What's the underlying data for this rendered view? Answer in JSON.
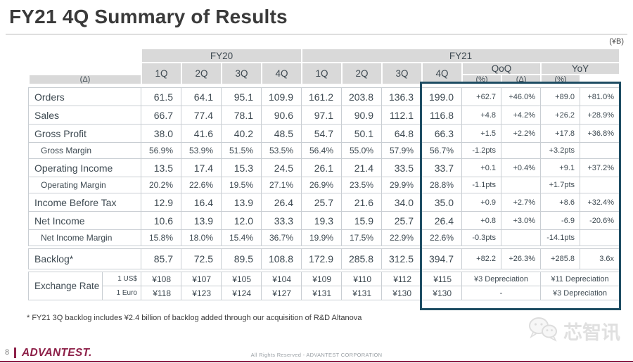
{
  "title": "FY21 4Q Summary of Results",
  "unit_label": "(¥B)",
  "table": {
    "fy20_label": "FY20",
    "fy21_label": "FY21",
    "qoq_label": "QoQ",
    "yoy_label": "YoY",
    "delta_label": "(Δ)",
    "pct_label": "(%)",
    "quarters": [
      "1Q",
      "2Q",
      "3Q",
      "4Q"
    ],
    "rows": [
      {
        "label": "Orders",
        "type": "main",
        "fy20": [
          "61.5",
          "64.1",
          "95.1",
          "109.9"
        ],
        "fy21": [
          "161.2",
          "203.8",
          "136.3",
          "199.0"
        ],
        "qoq": [
          "+62.7",
          "+46.0%"
        ],
        "yoy": [
          "+89.0",
          "+81.0%"
        ]
      },
      {
        "label": "Sales",
        "type": "main",
        "fy20": [
          "66.7",
          "77.4",
          "78.1",
          "90.6"
        ],
        "fy21": [
          "97.1",
          "90.9",
          "112.1",
          "116.8"
        ],
        "qoq": [
          "+4.8",
          "+4.2%"
        ],
        "yoy": [
          "+26.2",
          "+28.9%"
        ]
      },
      {
        "label": "Gross Profit",
        "type": "main",
        "fy20": [
          "38.0",
          "41.6",
          "40.2",
          "48.5"
        ],
        "fy21": [
          "54.7",
          "50.1",
          "64.8",
          "66.3"
        ],
        "qoq": [
          "+1.5",
          "+2.2%"
        ],
        "yoy": [
          "+17.8",
          "+36.8%"
        ]
      },
      {
        "label": "Gross Margin",
        "type": "sub",
        "fy20": [
          "56.9%",
          "53.9%",
          "51.5%",
          "53.5%"
        ],
        "fy21": [
          "56.4%",
          "55.0%",
          "57.9%",
          "56.7%"
        ],
        "qoq": [
          "-1.2pts",
          ""
        ],
        "yoy": [
          "+3.2pts",
          ""
        ]
      },
      {
        "label": "Operating Income",
        "type": "main",
        "fy20": [
          "13.5",
          "17.4",
          "15.3",
          "24.5"
        ],
        "fy21": [
          "26.1",
          "21.4",
          "33.5",
          "33.7"
        ],
        "qoq": [
          "+0.1",
          "+0.4%"
        ],
        "yoy": [
          "+9.1",
          "+37.2%"
        ]
      },
      {
        "label": "Operating Margin",
        "type": "sub",
        "fy20": [
          "20.2%",
          "22.6%",
          "19.5%",
          "27.1%"
        ],
        "fy21": [
          "26.9%",
          "23.5%",
          "29.9%",
          "28.8%"
        ],
        "qoq": [
          "-1.1pts",
          ""
        ],
        "yoy": [
          "+1.7pts",
          ""
        ]
      },
      {
        "label": "Income Before Tax",
        "type": "main",
        "fy20": [
          "12.9",
          "16.4",
          "13.9",
          "26.4"
        ],
        "fy21": [
          "25.7",
          "21.6",
          "34.0",
          "35.0"
        ],
        "qoq": [
          "+0.9",
          "+2.7%"
        ],
        "yoy": [
          "+8.6",
          "+32.4%"
        ]
      },
      {
        "label": "Net Income",
        "type": "main",
        "fy20": [
          "10.6",
          "13.9",
          "12.0",
          "33.3"
        ],
        "fy21": [
          "19.3",
          "15.9",
          "25.7",
          "26.4"
        ],
        "qoq": [
          "+0.8",
          "+3.0%"
        ],
        "yoy": [
          "-6.9",
          "-20.6%"
        ]
      },
      {
        "label": "Net Income Margin",
        "type": "sub",
        "fy20": [
          "15.8%",
          "18.0%",
          "15.4%",
          "36.7%"
        ],
        "fy21": [
          "19.9%",
          "17.5%",
          "22.9%",
          "22.6%"
        ],
        "qoq": [
          "-0.3pts",
          ""
        ],
        "yoy": [
          "-14.1pts",
          ""
        ]
      }
    ],
    "backlog": {
      "label": "Backlog*",
      "type": "main",
      "fy20": [
        "85.7",
        "72.5",
        "89.5",
        "108.8"
      ],
      "fy21": [
        "172.9",
        "285.8",
        "312.5",
        "394.7"
      ],
      "qoq": [
        "+82.2",
        "+26.3%"
      ],
      "yoy": [
        "+285.8",
        "3.6x"
      ]
    },
    "exchange": {
      "label": "Exchange Rate",
      "rows": [
        {
          "sub_label": "1 US$",
          "values": [
            "¥108",
            "¥107",
            "¥105",
            "¥104",
            "¥109",
            "¥110",
            "¥112",
            "¥115"
          ],
          "qoq": "¥3 Depreciation",
          "yoy": "¥11 Depreciation"
        },
        {
          "sub_label": "1 Euro",
          "values": [
            "¥118",
            "¥123",
            "¥124",
            "¥127",
            "¥131",
            "¥131",
            "¥130",
            "¥130"
          ],
          "qoq": "-",
          "yoy": "¥3 Depreciation"
        }
      ]
    }
  },
  "footnote": "* FY21 3Q backlog includes ¥2.4 billion of backlog added through our acquisition of R&D Altanova",
  "watermark": {
    "text": "芯智讯",
    "icon": "wechat-bubbles-icon"
  },
  "footer": {
    "page_number": "8",
    "logo_text": "ADVANTEST.",
    "copyright": "All Rights Reserved - ADVANTEST CORPORATION"
  },
  "colors": {
    "highlight_border": "#1e4d63",
    "brand": "#8d2048",
    "header_fill": "#d9d9d9"
  }
}
